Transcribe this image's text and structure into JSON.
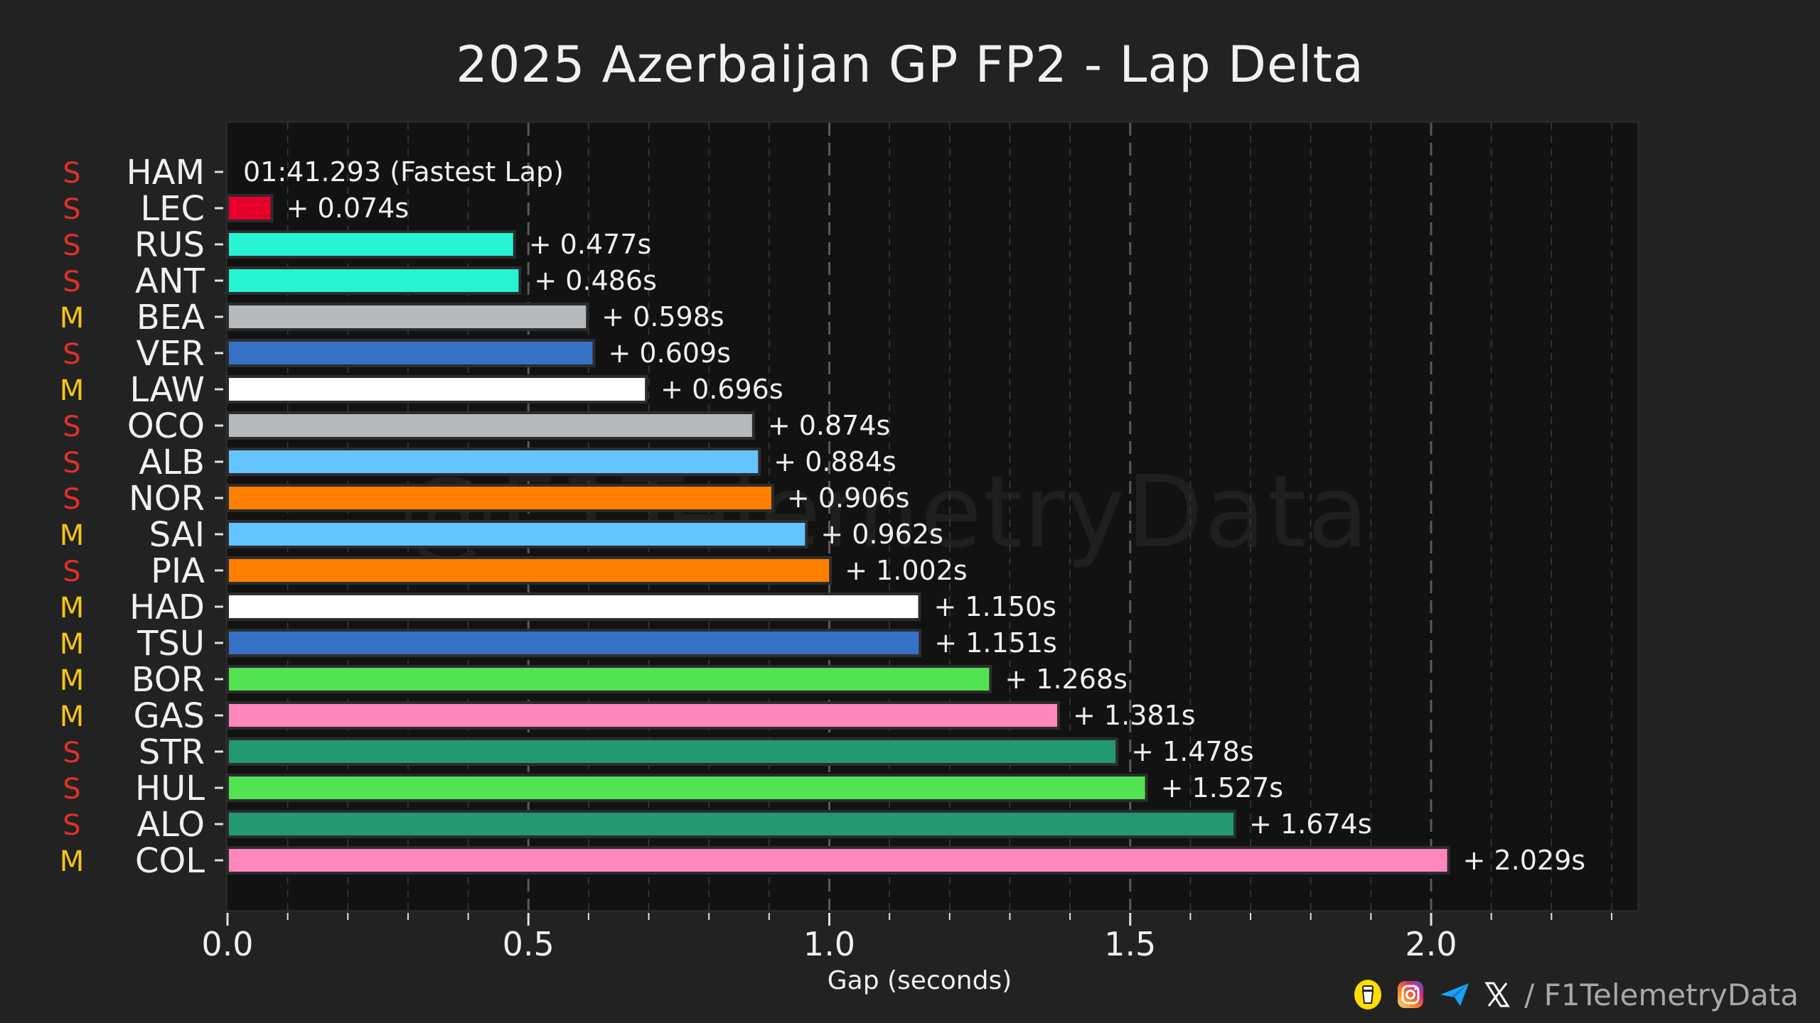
{
  "chart_data": {
    "type": "bar",
    "orientation": "horizontal",
    "title": "2025 Azerbaijan GP FP2 - Lap Delta",
    "xlabel": "Gap (seconds)",
    "ylabel": "",
    "xlim": [
      0,
      2.33
    ],
    "xticks": [
      0.0,
      0.5,
      1.0,
      1.5,
      2.0
    ],
    "xtick_labels": [
      "0.0",
      "0.5",
      "1.0",
      "1.5",
      "2.0"
    ],
    "minor_tick_step": 0.1,
    "grid": true,
    "fastest_lap_label": "01:41.293 (Fastest Lap)",
    "tyre_colors": {
      "S": "#e0302a",
      "M": "#f5c518"
    },
    "drivers": [
      {
        "driver": "HAM",
        "tyre": "S",
        "gap": 0.0,
        "label": "01:41.293 (Fastest Lap)",
        "color": "#e8002d"
      },
      {
        "driver": "LEC",
        "tyre": "S",
        "gap": 0.074,
        "label": "+ 0.074s",
        "color": "#e8002d"
      },
      {
        "driver": "RUS",
        "tyre": "S",
        "gap": 0.477,
        "label": "+ 0.477s",
        "color": "#27f4d2"
      },
      {
        "driver": "ANT",
        "tyre": "S",
        "gap": 0.486,
        "label": "+ 0.486s",
        "color": "#27f4d2"
      },
      {
        "driver": "BEA",
        "tyre": "M",
        "gap": 0.598,
        "label": "+ 0.598s",
        "color": "#b6babd"
      },
      {
        "driver": "VER",
        "tyre": "S",
        "gap": 0.609,
        "label": "+ 0.609s",
        "color": "#3671c6"
      },
      {
        "driver": "LAW",
        "tyre": "M",
        "gap": 0.696,
        "label": "+ 0.696s",
        "color": "#ffffff"
      },
      {
        "driver": "OCO",
        "tyre": "S",
        "gap": 0.874,
        "label": "+ 0.874s",
        "color": "#b6babd"
      },
      {
        "driver": "ALB",
        "tyre": "S",
        "gap": 0.884,
        "label": "+ 0.884s",
        "color": "#64c4ff"
      },
      {
        "driver": "NOR",
        "tyre": "S",
        "gap": 0.906,
        "label": "+ 0.906s",
        "color": "#ff8000"
      },
      {
        "driver": "SAI",
        "tyre": "M",
        "gap": 0.962,
        "label": "+ 0.962s",
        "color": "#64c4ff"
      },
      {
        "driver": "PIA",
        "tyre": "S",
        "gap": 1.002,
        "label": "+ 1.002s",
        "color": "#ff8000"
      },
      {
        "driver": "HAD",
        "tyre": "M",
        "gap": 1.15,
        "label": "+ 1.150s",
        "color": "#ffffff"
      },
      {
        "driver": "TSU",
        "tyre": "M",
        "gap": 1.151,
        "label": "+ 1.151s",
        "color": "#3671c6"
      },
      {
        "driver": "BOR",
        "tyre": "M",
        "gap": 1.268,
        "label": "+ 1.268s",
        "color": "#52e252"
      },
      {
        "driver": "GAS",
        "tyre": "M",
        "gap": 1.381,
        "label": "+ 1.381s",
        "color": "#ff87bc"
      },
      {
        "driver": "STR",
        "tyre": "S",
        "gap": 1.478,
        "label": "+ 1.478s",
        "color": "#229971"
      },
      {
        "driver": "HUL",
        "tyre": "S",
        "gap": 1.527,
        "label": "+ 1.527s",
        "color": "#52e252"
      },
      {
        "driver": "ALO",
        "tyre": "S",
        "gap": 1.674,
        "label": "+ 1.674s",
        "color": "#229971"
      },
      {
        "driver": "COL",
        "tyre": "M",
        "gap": 2.029,
        "label": "+ 2.029s",
        "color": "#ff87bc"
      }
    ]
  },
  "watermark": "@F1TelemetryData",
  "footer": {
    "icons": [
      "coffee-cup-icon",
      "instagram-icon",
      "telegram-icon",
      "x-icon"
    ],
    "handle": "/ F1TelemetryData"
  }
}
